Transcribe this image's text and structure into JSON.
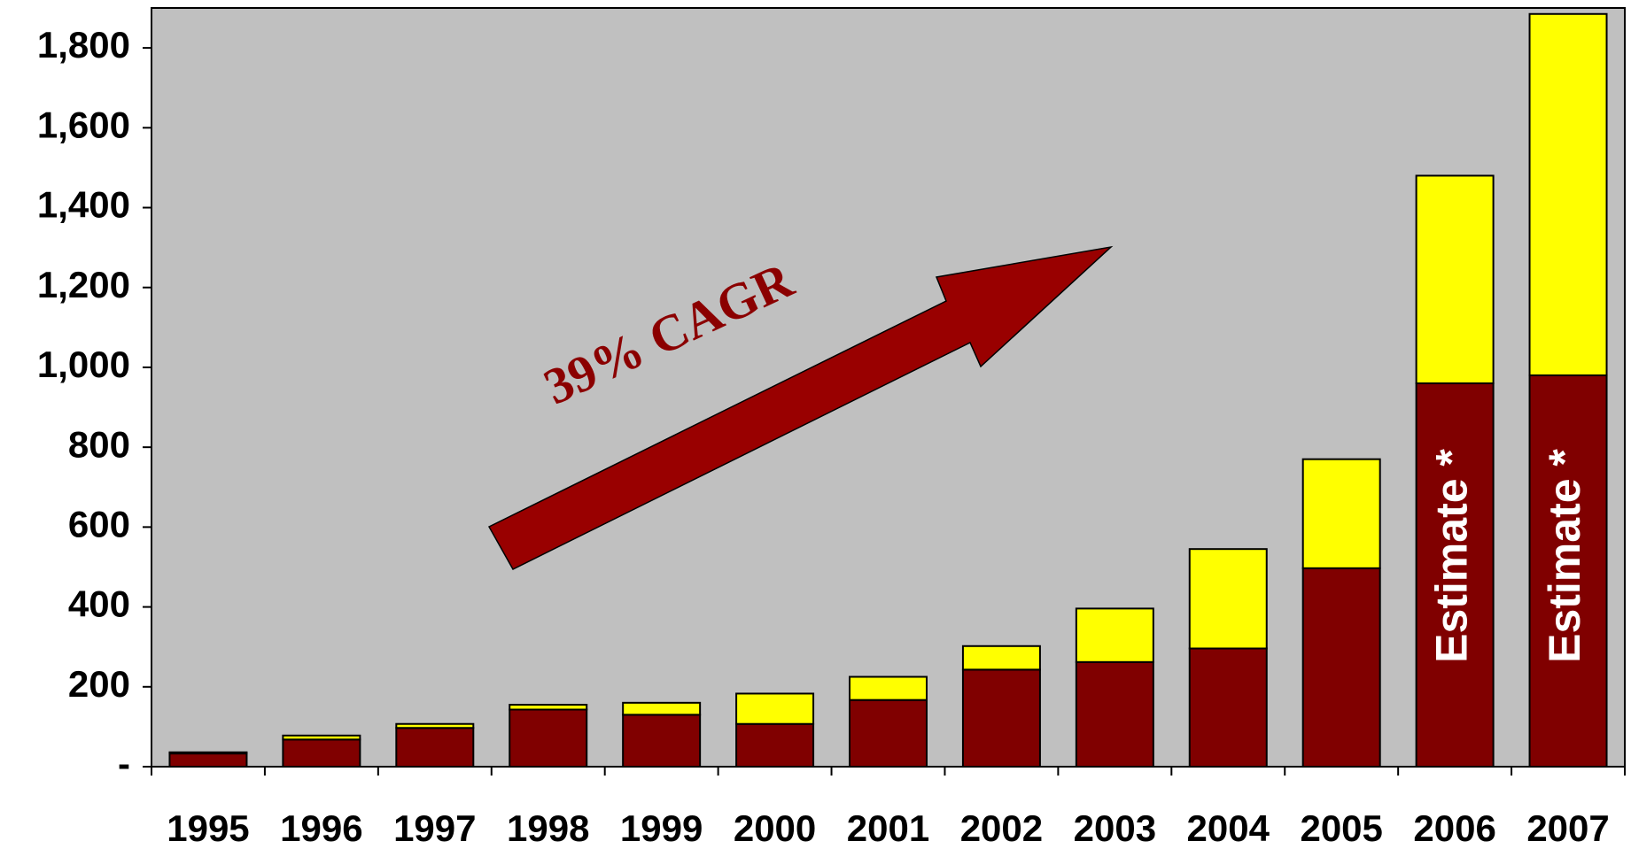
{
  "chart_data": {
    "type": "bar",
    "stacked": true,
    "categories": [
      "1995",
      "1996",
      "1997",
      "1998",
      "1999",
      "2000",
      "2001",
      "2002",
      "2003",
      "2004",
      "2005",
      "2006",
      "2007"
    ],
    "series": [
      {
        "color": "#800000",
        "values": [
          33,
          68,
          97,
          143,
          130,
          107,
          167,
          243,
          262,
          296,
          497,
          960,
          980
        ]
      },
      {
        "color": "#ffff00",
        "values": [
          3,
          10,
          10,
          12,
          30,
          76,
          58,
          59,
          134,
          249,
          273,
          520,
          905
        ]
      }
    ],
    "ylim": [
      0,
      1900
    ],
    "yticks": [
      {
        "value": 0,
        "label": "-"
      },
      200,
      400,
      600,
      800,
      {
        "value": 1000,
        "label": "1,000"
      },
      {
        "value": 1200,
        "label": "1,200"
      },
      {
        "value": 1400,
        "label": "1,400"
      },
      {
        "value": 1600,
        "label": "1,600"
      },
      {
        "value": 1800,
        "label": "1,800"
      }
    ],
    "annotations": [
      "39% CAGR",
      "Estimate *",
      "Estimate *"
    ],
    "plot_background": "#c0c0c0"
  }
}
